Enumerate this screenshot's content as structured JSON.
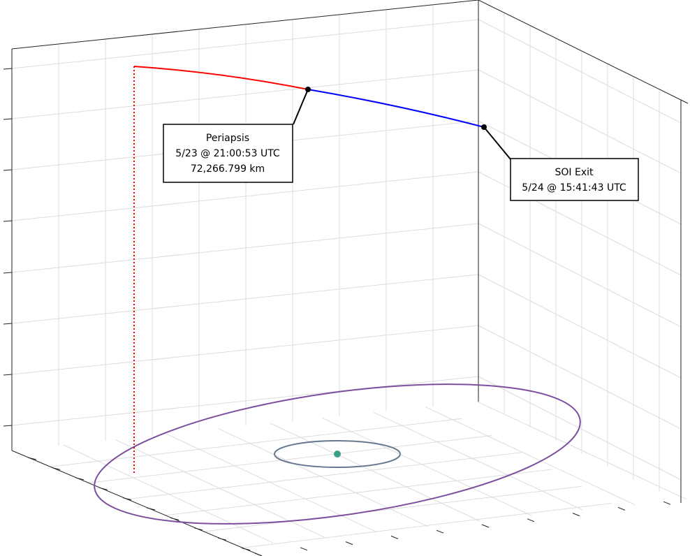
{
  "chart_data": {
    "type": "line3d",
    "annotations": [
      {
        "lines": [
          "Periapsis",
          "5/23 @ 21:00:53 UTC",
          "72,266.799 km"
        ]
      },
      {
        "lines": [
          "SOI Exit",
          "5/24 @ 15:41:43 UTC"
        ]
      }
    ]
  }
}
